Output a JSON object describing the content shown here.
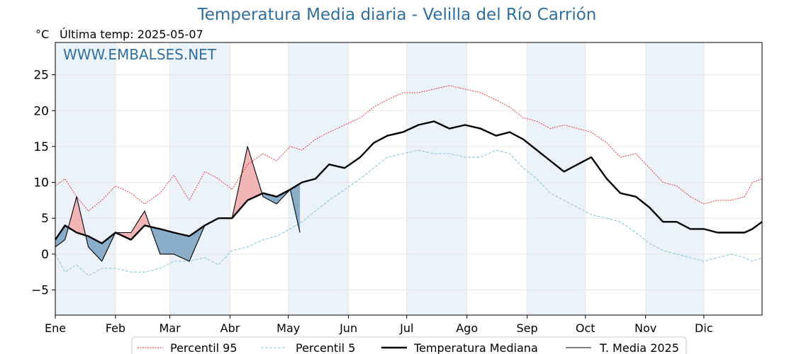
{
  "chart_data": {
    "type": "line",
    "title": "Temperatura Media diaria - Velilla del Río Carrión",
    "unit": "°C",
    "last_temp_label": "Última temp: 2025-05-07",
    "watermark": "WWW.EMBALSES.NET",
    "ylim": [
      -8.5,
      29.5
    ],
    "yticks": [
      -5,
      0,
      5,
      10,
      15,
      20,
      25
    ],
    "ytick_labels": [
      "−5",
      "0",
      "5",
      "10",
      "15",
      "20",
      "25"
    ],
    "months": [
      "Ene",
      "Feb",
      "Mar",
      "Abr",
      "May",
      "Jun",
      "Jul",
      "Ago",
      "Sep",
      "Oct",
      "Nov",
      "Dic"
    ],
    "x_unit": "day of year (1-365)",
    "grid": true,
    "legend_position": "bottom",
    "colors": {
      "p95": "#e8272a",
      "p5": "#8ec8dc",
      "median": "#000000",
      "t2025": "#000000",
      "above_fill": "#f2b5b5",
      "below_fill": "#8aaec9",
      "band": "#dde9f6",
      "title": "#2f6f9f"
    },
    "series": [
      {
        "name": "Percentil 95",
        "key": "p95",
        "x": [
          1,
          6,
          12,
          18,
          25,
          32,
          40,
          47,
          55,
          62,
          70,
          78,
          85,
          92,
          100,
          108,
          115,
          122,
          128,
          135,
          142,
          150,
          158,
          165,
          172,
          180,
          188,
          196,
          204,
          212,
          220,
          228,
          235,
          242,
          249,
          256,
          263,
          270,
          277,
          285,
          292,
          300,
          307,
          314,
          321,
          328,
          335,
          342,
          349,
          356,
          360,
          365
        ],
        "values": [
          9.5,
          10.5,
          8,
          6,
          7.5,
          9.5,
          8.5,
          7,
          8.5,
          11,
          7.5,
          11.5,
          10.5,
          9,
          12.5,
          14,
          13,
          15,
          14.5,
          16,
          17,
          18,
          19,
          20.5,
          21.5,
          22.5,
          22.5,
          23,
          23.5,
          23,
          22.5,
          21.5,
          20.5,
          19,
          18.5,
          17.5,
          18,
          17.5,
          17,
          15.5,
          13.5,
          14,
          12,
          10,
          9.5,
          8,
          7,
          7.5,
          7.5,
          8,
          10,
          10.5
        ]
      },
      {
        "name": "Percentil 5",
        "key": "p5",
        "x": [
          1,
          6,
          12,
          18,
          25,
          32,
          40,
          47,
          55,
          62,
          70,
          78,
          85,
          92,
          100,
          108,
          115,
          122,
          128,
          135,
          142,
          150,
          158,
          165,
          172,
          180,
          188,
          196,
          204,
          212,
          220,
          228,
          235,
          242,
          249,
          256,
          263,
          270,
          277,
          285,
          292,
          300,
          307,
          314,
          321,
          328,
          335,
          342,
          349,
          356,
          360,
          365
        ],
        "values": [
          0,
          -2.5,
          -1.5,
          -3,
          -2,
          -2,
          -2.5,
          -2.5,
          -2,
          -1,
          -1,
          -0.5,
          -1.5,
          0.5,
          1,
          2,
          2.5,
          3.5,
          4.5,
          6,
          7.5,
          9,
          10.5,
          12,
          13.5,
          14,
          14.5,
          14,
          14,
          13.5,
          13.5,
          14.5,
          14,
          12,
          10.5,
          8.5,
          7.5,
          6.5,
          5.5,
          5,
          4.5,
          3,
          1.5,
          0.5,
          0,
          -0.5,
          -1,
          -0.5,
          0,
          -0.5,
          -1,
          -0.5
        ]
      },
      {
        "name": "Temperatura Mediana",
        "key": "median",
        "x": [
          1,
          6,
          12,
          18,
          25,
          32,
          40,
          47,
          55,
          62,
          70,
          78,
          85,
          92,
          100,
          108,
          115,
          122,
          128,
          135,
          142,
          150,
          158,
          165,
          172,
          180,
          188,
          196,
          204,
          212,
          220,
          228,
          235,
          242,
          249,
          256,
          263,
          270,
          277,
          285,
          292,
          300,
          307,
          314,
          321,
          328,
          335,
          342,
          349,
          356,
          360,
          365
        ],
        "values": [
          2,
          4,
          3,
          2.5,
          1.5,
          3,
          2,
          4,
          3.5,
          3,
          2.5,
          4,
          5,
          5,
          7.5,
          8.5,
          8,
          9,
          10,
          10.5,
          12.5,
          12,
          13.5,
          15.5,
          16.5,
          17,
          18,
          18.5,
          17.5,
          18,
          17.5,
          16.5,
          17,
          16,
          14.5,
          13,
          11.5,
          12.5,
          13.5,
          10.5,
          8.5,
          8,
          6.5,
          4.5,
          4.5,
          3.5,
          3.5,
          3,
          3,
          3,
          3.5,
          4.5
        ]
      },
      {
        "name": "T. Media 2025",
        "key": "t2025",
        "x": [
          1,
          6,
          12,
          18,
          25,
          32,
          40,
          47,
          55,
          62,
          70,
          78,
          85,
          92,
          100,
          108,
          115,
          122,
          127
        ],
        "values": [
          1,
          2,
          8,
          1,
          -1,
          3,
          3,
          6,
          0,
          0,
          -1,
          4,
          5,
          5,
          15,
          8,
          7,
          9,
          3
        ]
      }
    ]
  }
}
